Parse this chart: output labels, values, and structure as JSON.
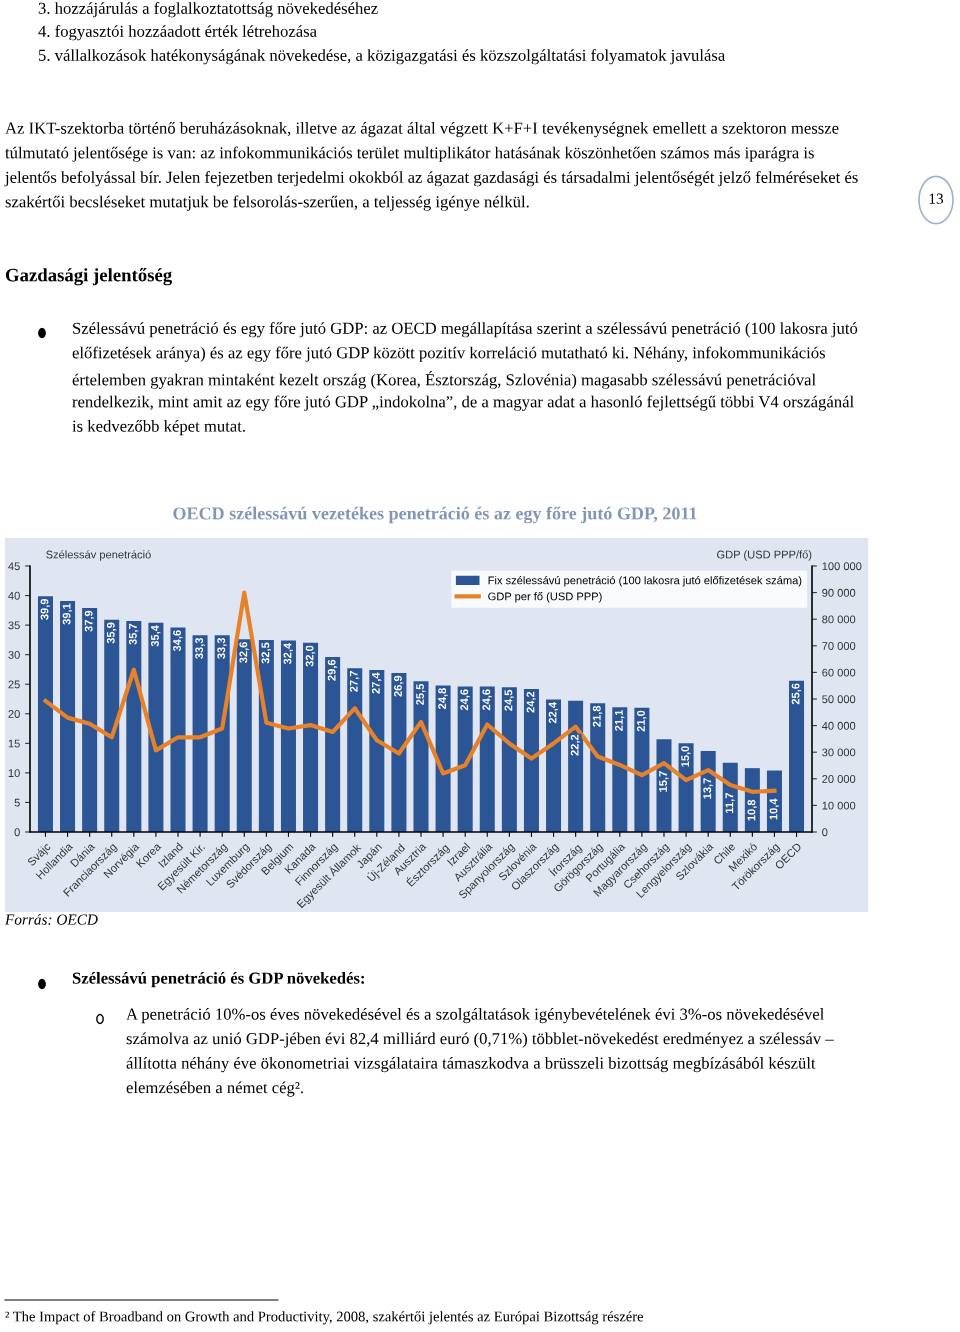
{
  "chart_data": {
    "type": "bar",
    "title": "OECD szélessávú vezetékes penetráció és az egy főre jutó GDP, 2011",
    "ylabel": "Szélessáv penetráció",
    "y2label": "GDP (USD PPP/fő)",
    "categories": [
      "Svájc",
      "Hollandia",
      "Dánia",
      "Franciaország",
      "Norvégia",
      "Korea",
      "Izland",
      "Egyesült Kir.",
      "Németország",
      "Luxemburg",
      "Svédország",
      "Belgium",
      "Kanada",
      "Finnország",
      "Egyesült Államok",
      "Japán",
      "Új-Zéland",
      "Ausztria",
      "Észtország",
      "Izrael",
      "Ausztrália",
      "Spanyolország",
      "Szlovénia",
      "Olaszország",
      "Írország",
      "Görögország",
      "Portugália",
      "Magyarország",
      "Csehország",
      "Lengyelország",
      "Szlovákia",
      "Chile",
      "Mexikó",
      "Törökország",
      "OECD"
    ],
    "series": [
      {
        "name": "Fix szélessávú penetráció (100 lakosra jutó előfizetések száma)",
        "color": "#2b5594",
        "values": [
          39.9,
          39.1,
          37.9,
          35.9,
          35.7,
          35.4,
          34.6,
          33.3,
          33.3,
          32.6,
          32.5,
          32.4,
          32.0,
          29.6,
          27.7,
          27.4,
          26.9,
          25.5,
          24.8,
          24.6,
          24.6,
          24.5,
          24.2,
          22.4,
          22.2,
          21.8,
          21.1,
          21.0,
          15.7,
          15.0,
          13.7,
          11.7,
          10.8,
          10.4,
          25.6
        ],
        "value_labels": [
          "39,9",
          "39,1",
          "37,9",
          "35,9",
          "35,7",
          "35,4",
          "34,6",
          "33,3",
          "33,3",
          "32,6",
          "32,5",
          "32,4",
          "32,0",
          "29,6",
          "27,7",
          "27,4",
          "26,9",
          "25,5",
          "24,8",
          "24,6",
          "24,6",
          "24,5",
          "24,2",
          "22,4",
          "22,2",
          "21,8",
          "21,1",
          "21,0",
          "15,7",
          "15,0",
          "13,7",
          "11,7",
          "10,8",
          "10,4",
          "25,6"
        ]
      },
      {
        "name": "GDP per fő (USD PPP)",
        "type": "line",
        "axis": "y2",
        "color": "#e8822a",
        "values": [
          49300,
          43000,
          40700,
          35600,
          61000,
          30700,
          35600,
          35600,
          38900,
          90000,
          41100,
          38900,
          40200,
          37600,
          46500,
          34500,
          29500,
          41400,
          22000,
          25100,
          40400,
          33300,
          27600,
          33300,
          39600,
          28400,
          25200,
          21400,
          25900,
          19500,
          23300,
          17700,
          15100,
          15500,
          null
        ]
      }
    ],
    "ylim": [
      0,
      45
    ],
    "yticks": [
      0,
      5,
      10,
      15,
      20,
      25,
      30,
      35,
      40,
      45
    ],
    "y2lim": [
      0,
      100000
    ],
    "y2ticks": [
      0,
      {
        "value": 10000,
        "label": "10 000"
      },
      {
        "value": 20000,
        "label": "20 000"
      },
      {
        "value": 30000,
        "label": "30 000"
      },
      {
        "value": 40000,
        "label": "40 000"
      },
      {
        "value": 50000,
        "label": "50 000"
      },
      {
        "value": 60000,
        "label": "60 000"
      },
      {
        "value": 70000,
        "label": "70 000"
      },
      {
        "value": 80000,
        "label": "80 000"
      },
      {
        "value": 90000,
        "label": "90 000"
      },
      {
        "value": 100000,
        "label": "100 000"
      }
    ],
    "legend": "top right",
    "annotations": [
      "3. hozzájárulás a foglalkoztatottság növekedéséhez",
      "4. fogyasztói hozzáadott érték létrehozása",
      "5. vállalkozások hatékonyságának növekedése, a közigazgatási és közszolgáltatási folyamatok javulása",
      "Az IKT-szektorba történő beruházásoknak, illetve az ágazat által végzett K+F+I tevékenységnek emellett a szektoron messze túlmutató jelentősége is van: az infokommunikációs terület multiplikátor hatásának köszönhetően számos más iparágra is jelentős befolyással bír. Jelen fejezetben terjedelmi okokból az ágazat gazdasági és társadalmi jelentőségét jelző felméréseket és szakértői becsléseket mutatjuk be felsorolás-szerűen, a teljesség igénye nélkül.",
      "Gazdasági jelentőség",
      "Szélessávú penetráció és egy főre jutó GDP: az OECD megállapítása szerint a szélessávú penetráció (100 lakosra jutó előfizetések aránya) és az egy főre jutó GDP között pozitív korreláció mutatható ki. Néhány, infokommunikációs értelemben gyakran mintaként kezelt ország (Korea, Észtország, Szlovénia) magasabb szélessávú penetrációval rendelkezik, mint amit az egy főre jutó GDP „indokolna”, de a magyar adat a hasonló fejlettségű többi V4 országánál is kedvezőbb képet mutat.",
      "Forrás: OECD",
      "Szélessávú penetráció és GDP növekedés:",
      "A penetráció 10%-os éves növekedésével és a szolgáltatások igénybevételének évi 3%-os növekedésével számolva az unió GDP-jében évi 82,4 milliárd euró (0,71%) többlet-növekedést eredményez a szélessáv – állította néhány éve ökonometriai vizsgálataira támaszkodva a brüsszeli bizottság megbízásából készült elemzésében a német cég².",
      "² The Impact of Broadband on Growth and Productivity, 2008, szakértői jelentés az Európai Bizottság részére",
      "13"
    ]
  }
}
